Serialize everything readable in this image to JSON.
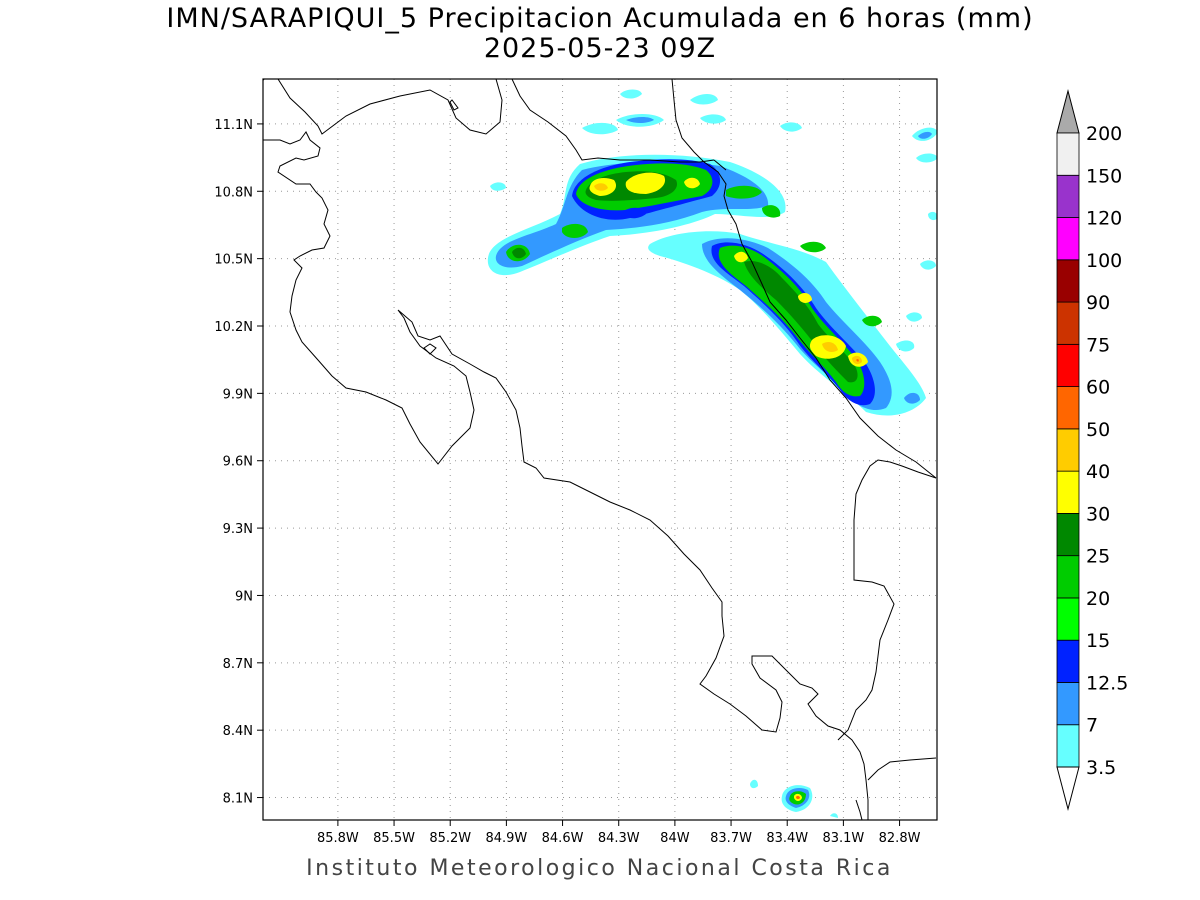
{
  "title": {
    "line1": "IMN/SARAPIQUI_5 Precipitacion Acumulada en 6 horas (mm)",
    "line2": "2025-05-23 09Z"
  },
  "footer": "Instituto Meteorologico Nacional Costa Rica",
  "map": {
    "lon_range": [
      -86.2,
      -82.6
    ],
    "lat_range": [
      8.0,
      11.3
    ],
    "lat_ticks": [
      {
        "value": 11.1,
        "label": "11.1N"
      },
      {
        "value": 10.8,
        "label": "10.8N"
      },
      {
        "value": 10.5,
        "label": "10.5N"
      },
      {
        "value": 10.2,
        "label": "10.2N"
      },
      {
        "value": 9.9,
        "label": "9.9N"
      },
      {
        "value": 9.6,
        "label": "9.6N"
      },
      {
        "value": 9.3,
        "label": "9.3N"
      },
      {
        "value": 9.0,
        "label": "9N"
      },
      {
        "value": 8.7,
        "label": "8.7N"
      },
      {
        "value": 8.4,
        "label": "8.4N"
      },
      {
        "value": 8.1,
        "label": "8.1N"
      }
    ],
    "lon_ticks": [
      {
        "value": -85.8,
        "label": "85.8W"
      },
      {
        "value": -85.5,
        "label": "85.5W"
      },
      {
        "value": -85.2,
        "label": "85.2W"
      },
      {
        "value": -84.9,
        "label": "84.9W"
      },
      {
        "value": -84.6,
        "label": "84.6W"
      },
      {
        "value": -84.3,
        "label": "84.3W"
      },
      {
        "value": -84.0,
        "label": "84W"
      },
      {
        "value": -83.7,
        "label": "83.7W"
      },
      {
        "value": -83.4,
        "label": "83.4W"
      },
      {
        "value": -83.1,
        "label": "83.1W"
      },
      {
        "value": -82.8,
        "label": "82.8W"
      }
    ]
  },
  "colorbar": {
    "labels": [
      "3.5",
      "7",
      "12.5",
      "15",
      "20",
      "25",
      "30",
      "40",
      "50",
      "60",
      "75",
      "90",
      "100",
      "120",
      "150",
      "200"
    ],
    "colors": [
      "#66ffff",
      "#3399ff",
      "#0022ff",
      "#00ff00",
      "#00cc00",
      "#008800",
      "#ffff00",
      "#ffcc00",
      "#ff6600",
      "#ff0000",
      "#cc3300",
      "#990000",
      "#ff00ff",
      "#9933cc",
      "#f0f0f0",
      "#aaaaaa"
    ],
    "over_color": "#aaaaaa",
    "under_color": "#ffffff"
  }
}
